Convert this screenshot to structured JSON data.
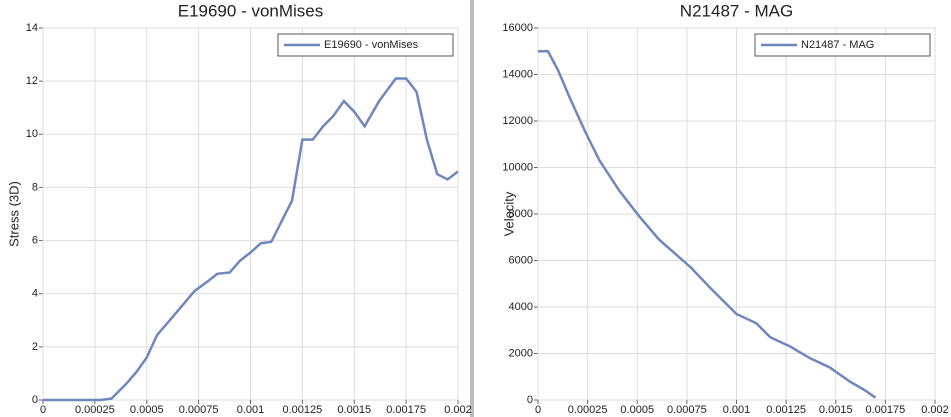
{
  "chart_data": [
    {
      "type": "line",
      "title": "E19690 - vonMises",
      "y_label": "Stress (3D)",
      "x": [
        0,
        0.000275,
        0.00033,
        0.0004,
        0.00045,
        0.0005,
        0.00055,
        0.0006,
        0.00066,
        0.00073,
        0.0008,
        0.00084,
        0.0009,
        0.00095,
        0.001,
        0.00105,
        0.0011,
        0.0012,
        0.00125,
        0.0013,
        0.00135,
        0.0014,
        0.00145,
        0.0015,
        0.00155,
        0.00162,
        0.0017,
        0.00175,
        0.0018,
        0.00185,
        0.0019,
        0.00195,
        0.002
      ],
      "series": [
        {
          "name": "E19690 - vonMises",
          "color": "#6f87bd",
          "values": [
            0,
            0,
            0.05,
            0.6,
            1.05,
            1.6,
            2.45,
            2.9,
            3.45,
            4.1,
            4.5,
            4.75,
            4.8,
            5.25,
            5.55,
            5.9,
            5.95,
            7.5,
            9.8,
            9.8,
            10.3,
            10.7,
            11.25,
            10.85,
            10.3,
            11.25,
            12.1,
            12.1,
            11.6,
            9.8,
            8.5,
            8.3,
            8.6
          ]
        }
      ],
      "xlim": [
        0,
        0.002
      ],
      "xticks": [
        0,
        0.00025,
        0.0005,
        0.00075,
        0.001,
        0.00125,
        0.0015,
        0.00175,
        0.002
      ],
      "ylim": [
        0,
        14
      ],
      "yticks": [
        0,
        2,
        4,
        6,
        8,
        10,
        12,
        14
      ],
      "grid": true,
      "legend": "top-right"
    },
    {
      "type": "line",
      "title": "N21487 - MAG",
      "y_label": "Velocity",
      "x": [
        0,
        5e-05,
        0.0001,
        0.00016,
        0.00024,
        0.00031,
        0.00041,
        0.00051,
        0.00061,
        0.00077,
        0.00087,
        0.001,
        0.0011,
        0.00117,
        0.00127,
        0.00137,
        0.00147,
        0.00157,
        0.00165,
        0.0017
      ],
      "series": [
        {
          "name": "N21487 - MAG",
          "color": "#6f87bd",
          "values": [
            15000,
            15000,
            14200,
            13000,
            11500,
            10300,
            9000,
            7900,
            6900,
            5700,
            4800,
            3700,
            3300,
            2700,
            2300,
            1800,
            1400,
            800,
            400,
            100
          ]
        }
      ],
      "xlim": [
        0,
        0.002
      ],
      "xticks": [
        0,
        0.00025,
        0.0005,
        0.00075,
        0.001,
        0.00125,
        0.0015,
        0.00175,
        0.002
      ],
      "ylim": [
        0,
        16000
      ],
      "yticks": [
        0,
        2000,
        4000,
        6000,
        8000,
        10000,
        12000,
        14000,
        16000
      ],
      "grid": true,
      "legend": "top-right"
    }
  ]
}
